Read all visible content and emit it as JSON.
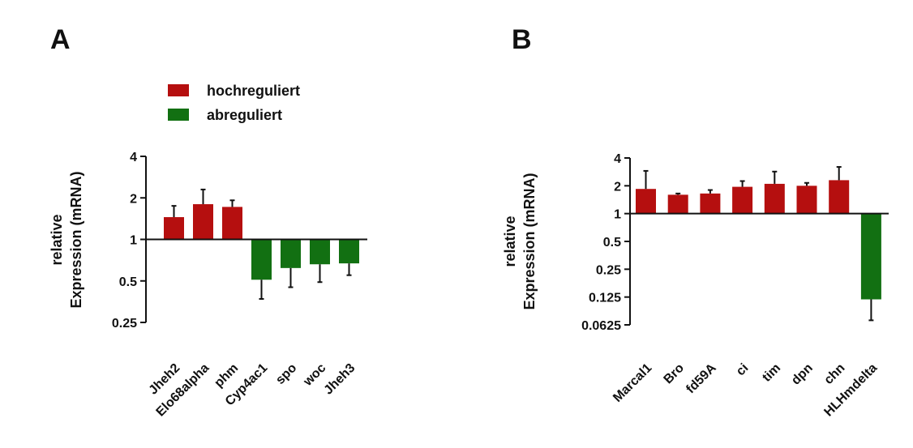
{
  "colors": {
    "up": "#b50f0f",
    "down": "#127012",
    "axis": "#111111"
  },
  "legend": {
    "items": [
      {
        "label": "hochreguliert",
        "color": "#b50f0f"
      },
      {
        "label": "abreguliert",
        "color": "#127012"
      }
    ]
  },
  "chart_data": [
    {
      "panel": "A",
      "type": "bar",
      "scale": "log2",
      "ylabel_lines": [
        "relative",
        "Expression (mRNA)"
      ],
      "ylim": [
        0.25,
        4
      ],
      "yticks": [
        "4",
        "2",
        "1",
        "0.5",
        "0.25"
      ],
      "ytick_values": [
        4,
        2,
        1,
        0.5,
        0.25
      ],
      "baseline": 1,
      "categories": [
        "Jheh2",
        "Elo68alpha",
        "phm",
        "Cyp4ac1",
        "spo",
        "woc",
        "Jheh3"
      ],
      "values": [
        1.45,
        1.8,
        1.72,
        0.51,
        0.62,
        0.66,
        0.67
      ],
      "error_ends": [
        1.75,
        2.3,
        1.92,
        0.37,
        0.45,
        0.49,
        0.55
      ],
      "direction": [
        "up",
        "up",
        "up",
        "down",
        "down",
        "down",
        "down"
      ]
    },
    {
      "panel": "B",
      "type": "bar",
      "scale": "log2",
      "ylabel_lines": [
        "relative",
        "Expression (mRNA)"
      ],
      "ylim": [
        0.0625,
        4
      ],
      "yticks": [
        "4",
        "2",
        "1",
        "0.5",
        "0.25",
        "0.125",
        "0.0625"
      ],
      "ytick_values": [
        4,
        2,
        1,
        0.5,
        0.25,
        0.125,
        0.0625
      ],
      "baseline": 1,
      "categories": [
        "Marcal1",
        "Bro",
        "fd59A",
        "ci",
        "tim",
        "dpn",
        "chn",
        "HLHmdelta"
      ],
      "values": [
        1.85,
        1.6,
        1.65,
        1.95,
        2.1,
        2.0,
        2.3,
        0.118
      ],
      "error_ends": [
        2.9,
        1.65,
        1.8,
        2.25,
        2.85,
        2.15,
        3.2,
        0.07
      ],
      "direction": [
        "up",
        "up",
        "up",
        "up",
        "up",
        "up",
        "up",
        "down"
      ]
    }
  ],
  "panels": {
    "a_letter": "A",
    "b_letter": "B"
  }
}
